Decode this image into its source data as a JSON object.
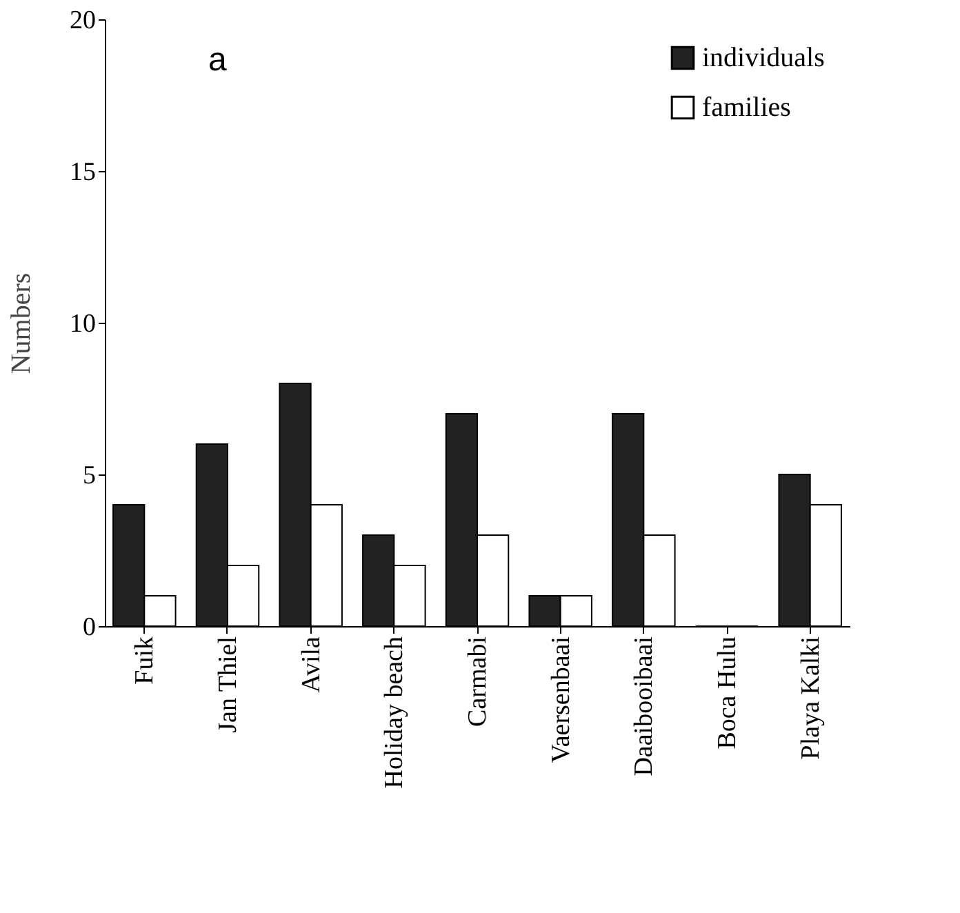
{
  "chart_data": {
    "type": "bar",
    "ylabel": "Numbers",
    "categories": [
      "Fuik",
      "Jan Thiel",
      "Avila",
      "Holiday beach",
      "Carmabi",
      "Vaersenbaai",
      "Daaibooibaai",
      "Boca Hulu",
      "Playa Kalki"
    ],
    "series": [
      {
        "name": "individuals",
        "color": "#222222",
        "values": [
          4,
          6,
          8,
          3,
          7,
          1,
          7,
          0,
          5
        ]
      },
      {
        "name": "families",
        "color": "#ffffff",
        "values": [
          1,
          2,
          4,
          2,
          3,
          1,
          3,
          0,
          4
        ]
      }
    ],
    "ylim": [
      0,
      20
    ],
    "yticks": [
      0,
      5,
      10,
      15,
      20
    ],
    "grid": false,
    "legend": "top right",
    "annotations": [
      "a"
    ]
  }
}
